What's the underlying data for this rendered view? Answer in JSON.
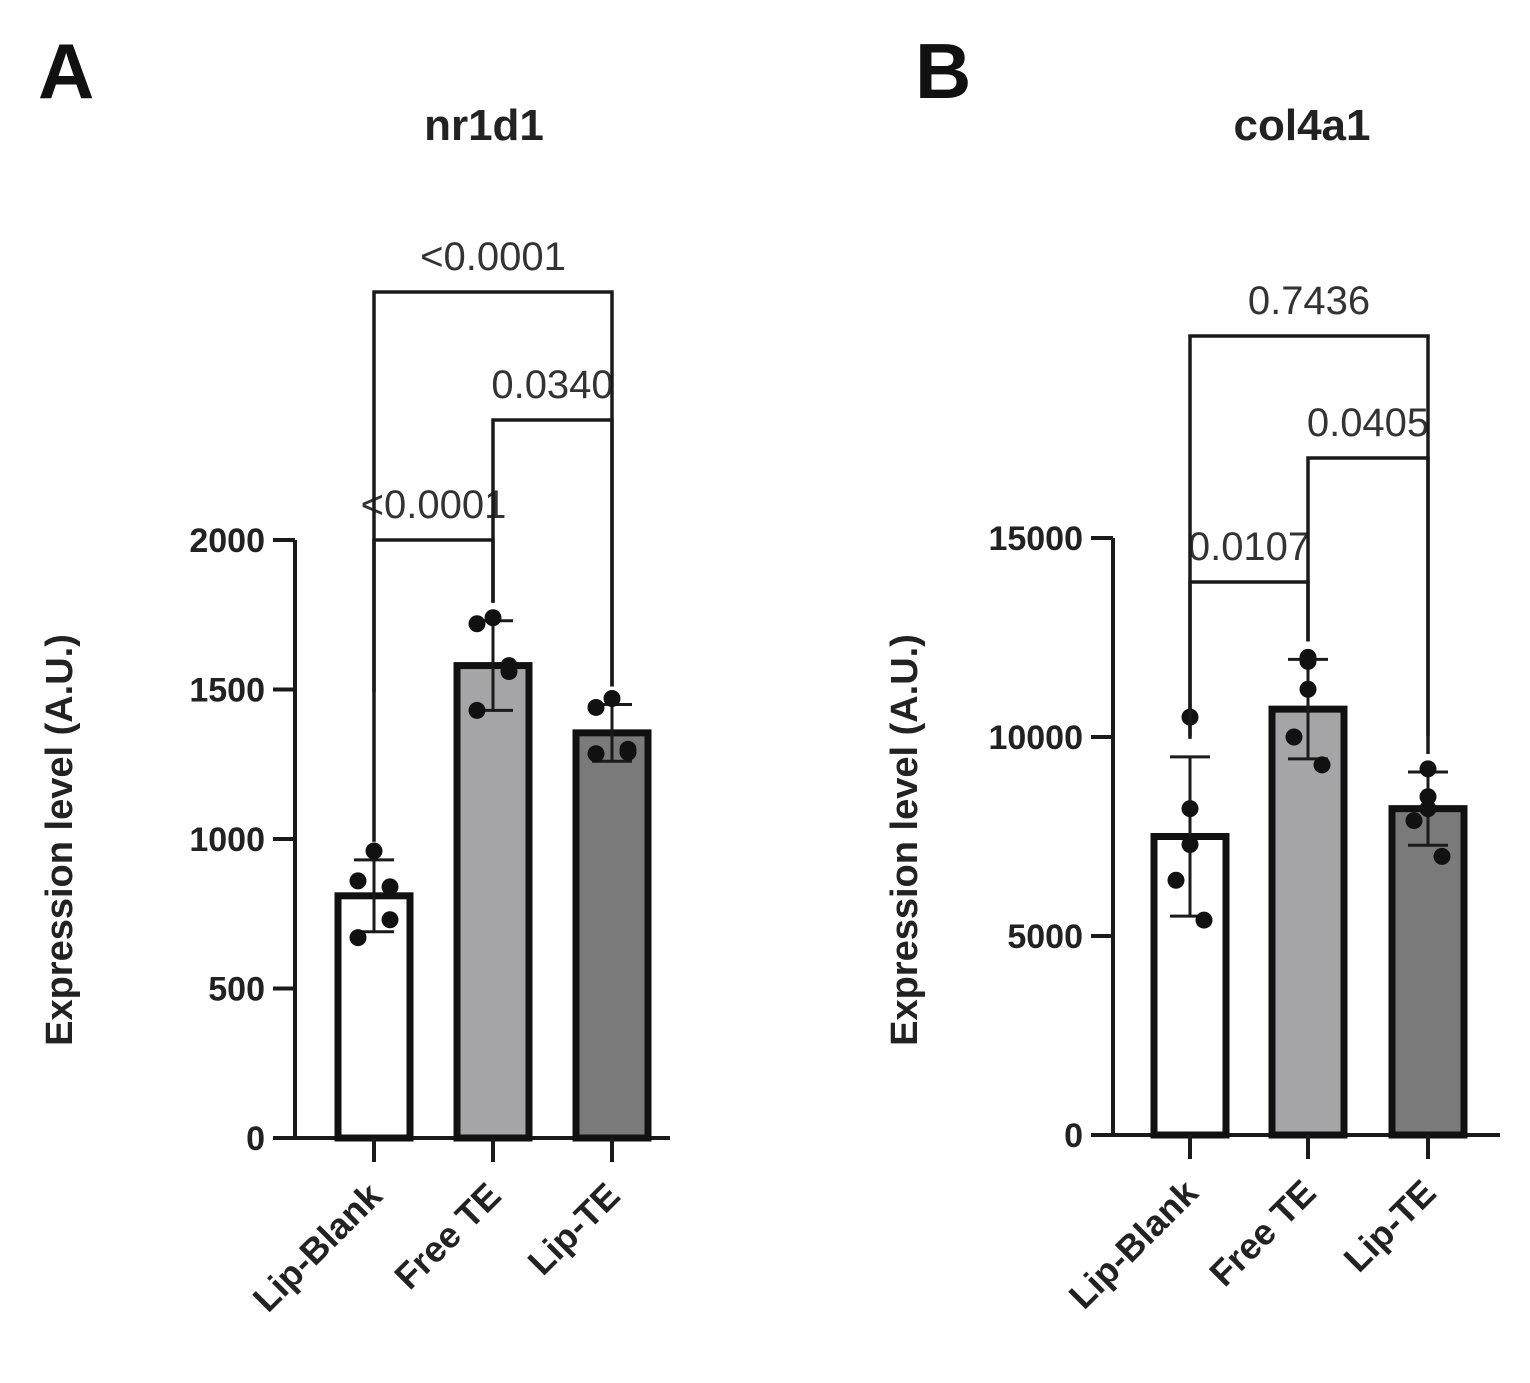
{
  "panels": [
    {
      "letter": "A"
    },
    {
      "letter": "B"
    }
  ],
  "colors": {
    "axis": "#1a1a1a",
    "bar_stroke": "#111111",
    "point": "#111111",
    "bracket": "#1a1a1a"
  },
  "chart_data": [
    {
      "type": "bar",
      "title": "nr1d1",
      "xlabel": "",
      "ylabel": "Expression level (A.U.)",
      "ylim": [
        0,
        2000
      ],
      "yticks": [
        0,
        500,
        1000,
        1500,
        2000
      ],
      "ytick_labels": [
        "0",
        "500",
        "1000",
        "1500",
        "2000"
      ],
      "categories": [
        "Lip-Blank",
        "Free TE",
        "Lip-TE"
      ],
      "values": [
        810,
        1580,
        1355
      ],
      "errors": [
        120,
        150,
        95
      ],
      "fills": [
        "#ffffff",
        "#a5a5a8",
        "#7a7a7a"
      ],
      "points": [
        [
          960,
          860,
          840,
          730,
          670
        ],
        [
          1740,
          1720,
          1580,
          1560,
          1430
        ],
        [
          1470,
          1440,
          1300,
          1290,
          1285
        ]
      ],
      "comparisons": [
        {
          "from": 0,
          "to": 1,
          "label": "<0.0001",
          "level": 1
        },
        {
          "from": 1,
          "to": 2,
          "label": "0.0340",
          "level": 2
        },
        {
          "from": 0,
          "to": 2,
          "label": "<0.0001",
          "level": 3
        }
      ]
    },
    {
      "type": "bar",
      "title": "col4a1",
      "xlabel": "",
      "ylabel": "Expression level (A.U.)",
      "ylim": [
        0,
        15000
      ],
      "yticks": [
        0,
        5000,
        10000,
        15000
      ],
      "ytick_labels": [
        "0",
        "5000",
        "10000",
        "15000"
      ],
      "categories": [
        "Lip-Blank",
        "Free TE",
        "Lip-TE"
      ],
      "values": [
        7500,
        10700,
        8200
      ],
      "errors": [
        2000,
        1250,
        920
      ],
      "fills": [
        "#ffffff",
        "#a5a5a8",
        "#7a7a7a"
      ],
      "points": [
        [
          10500,
          8200,
          7300,
          6400,
          5400
        ],
        [
          12000,
          11900,
          11200,
          10000,
          9300
        ],
        [
          9200,
          8500,
          8200,
          7900,
          7000
        ]
      ],
      "comparisons": [
        {
          "from": 0,
          "to": 1,
          "label": "0.0107",
          "level": 1
        },
        {
          "from": 1,
          "to": 2,
          "label": "0.0405",
          "level": 2
        },
        {
          "from": 0,
          "to": 2,
          "label": "0.7436",
          "level": 3
        }
      ]
    }
  ]
}
